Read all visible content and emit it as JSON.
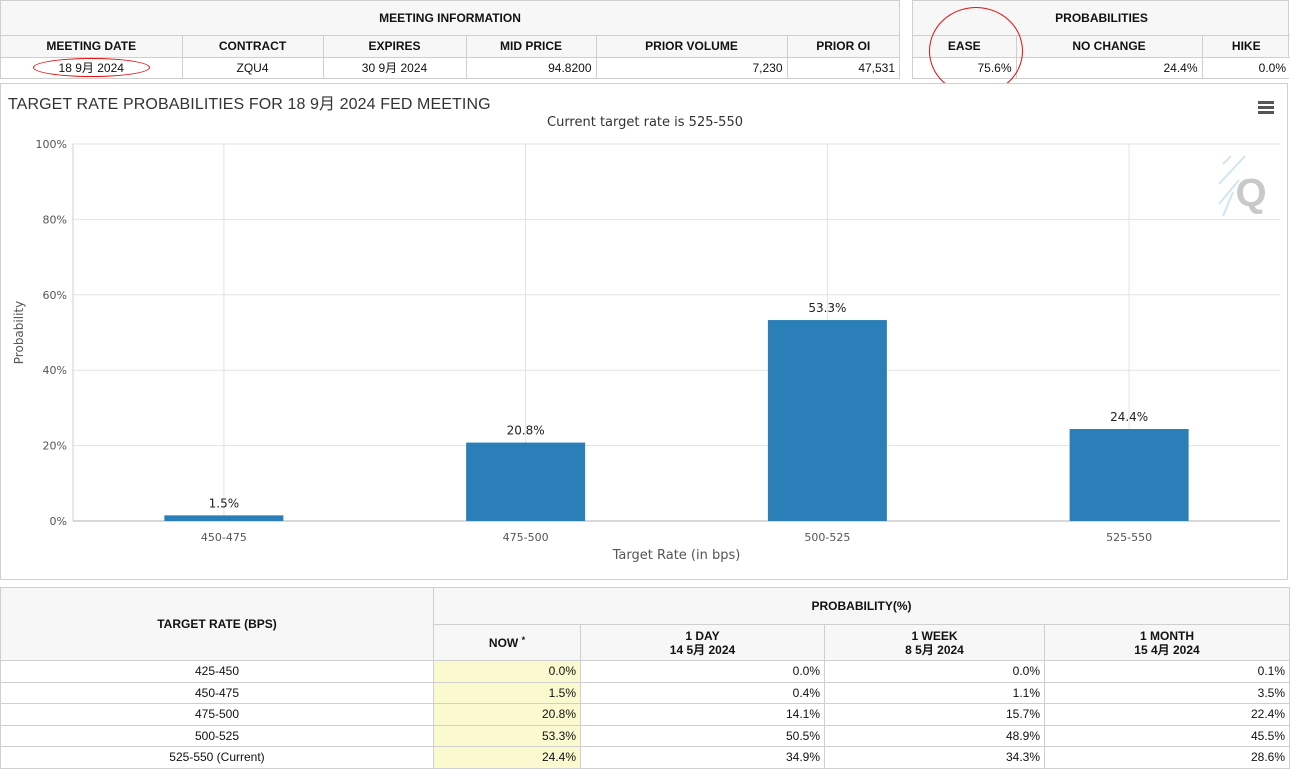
{
  "meeting_info": {
    "group_title": "MEETING INFORMATION",
    "headers": {
      "meeting_date": "MEETING DATE",
      "contract": "CONTRACT",
      "expires": "EXPIRES",
      "mid_price": "MID PRICE",
      "prior_volume": "PRIOR VOLUME",
      "prior_oi": "PRIOR OI"
    },
    "values": {
      "meeting_date": "18 9月 2024",
      "contract": "ZQU4",
      "expires": "30 9月 2024",
      "mid_price": "94.8200",
      "prior_volume": "7,230",
      "prior_oi": "47,531"
    }
  },
  "probabilities": {
    "group_title": "PROBABILITIES",
    "headers": {
      "ease": "EASE",
      "no_change": "NO CHANGE",
      "hike": "HIKE"
    },
    "values": {
      "ease": "75.6%",
      "no_change": "24.4%",
      "hike": "0.0%"
    }
  },
  "chart_panel": {
    "title": "TARGET RATE PROBABILITIES FOR 18 9月 2024 FED MEETING",
    "subtitle": "Current target rate is 525-550",
    "menu_icon": "hamburger-menu-icon",
    "watermark_icon": "q-logo-icon"
  },
  "chart_data": {
    "type": "bar",
    "title": "TARGET RATE PROBABILITIES FOR 18 9月 2024 FED MEETING",
    "subtitle": "Current target rate is 525-550",
    "xlabel": "Target Rate (in bps)",
    "ylabel": "Probability",
    "categories": [
      "450-475",
      "475-500",
      "500-525",
      "525-550"
    ],
    "values": [
      1.5,
      20.8,
      53.3,
      24.4
    ],
    "data_labels": [
      "1.5%",
      "20.8%",
      "53.3%",
      "24.4%"
    ],
    "y_ticks": [
      0,
      20,
      40,
      60,
      80,
      100
    ],
    "y_tick_labels": [
      "0%",
      "20%",
      "40%",
      "60%",
      "80%",
      "100%"
    ],
    "ylim": [
      0,
      100
    ],
    "grid": true,
    "bar_color": "#2a7fb8"
  },
  "prob_table": {
    "col1_header": "TARGET RATE (BPS)",
    "group_header": "PROBABILITY(%)",
    "columns": [
      {
        "label": "NOW",
        "marker": "*",
        "date": ""
      },
      {
        "label": "1 DAY",
        "marker": "",
        "date": "14 5月 2024"
      },
      {
        "label": "1 WEEK",
        "marker": "",
        "date": "8 5月 2024"
      },
      {
        "label": "1 MONTH",
        "marker": "",
        "date": "15 4月 2024"
      }
    ],
    "rows": [
      {
        "rate": "425-450",
        "values": [
          "0.0%",
          "0.0%",
          "0.0%",
          "0.1%"
        ]
      },
      {
        "rate": "450-475",
        "values": [
          "1.5%",
          "0.4%",
          "1.1%",
          "3.5%"
        ]
      },
      {
        "rate": "475-500",
        "values": [
          "20.8%",
          "14.1%",
          "15.7%",
          "22.4%"
        ]
      },
      {
        "rate": "500-525",
        "values": [
          "53.3%",
          "50.5%",
          "48.9%",
          "45.5%"
        ]
      },
      {
        "rate": "525-550 (Current)",
        "values": [
          "24.4%",
          "34.9%",
          "34.3%",
          "28.6%"
        ]
      }
    ]
  },
  "colors": {
    "header_bg": "#f7f7f7",
    "now_col_bg": "#fbf9cf",
    "border": "#cfcfcf",
    "annotation_red": "#e01010"
  }
}
